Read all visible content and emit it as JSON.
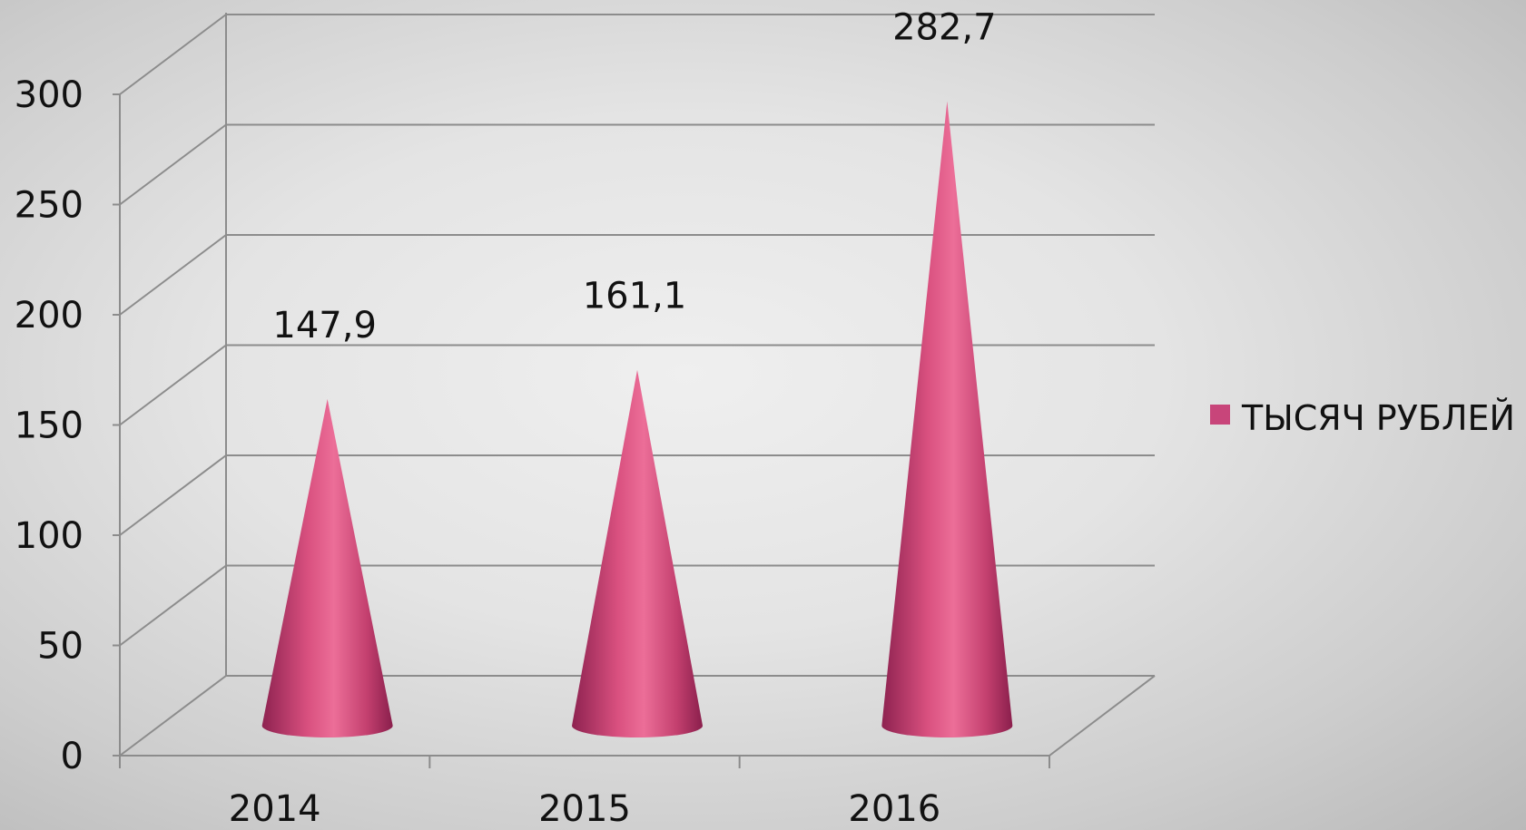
{
  "chart_data": {
    "type": "bar",
    "shape": "cone-3d",
    "categories": [
      "2014",
      "2015",
      "2016"
    ],
    "series": [
      {
        "name": "ТЫСЯЧ РУБЛЕЙ",
        "values": [
          147.9,
          161.1,
          282.7
        ],
        "color": "#c8457a"
      }
    ],
    "data_labels": [
      "147,9",
      "161,1",
      "282,7"
    ],
    "y_ticks": [
      "0",
      "50",
      "100",
      "150",
      "200",
      "250",
      "300"
    ],
    "ylim": [
      0,
      300
    ],
    "grid": true,
    "legend_position": "right"
  }
}
